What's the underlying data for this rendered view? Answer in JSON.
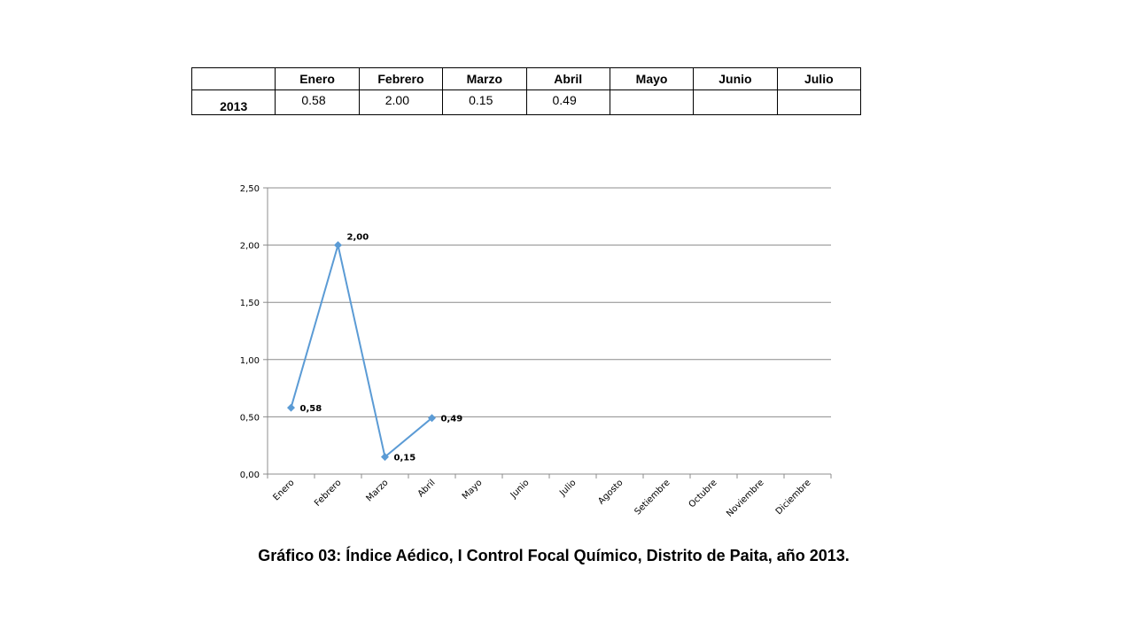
{
  "table": {
    "corner": "",
    "headers": [
      "Enero",
      "Febrero",
      "Marzo",
      "Abril",
      "Mayo",
      "Junio",
      "Julio"
    ],
    "row_label": "2013",
    "values": [
      "0.58",
      "2.00",
      "0.15",
      "0.49",
      "",
      "",
      ""
    ]
  },
  "chart_data": {
    "type": "line",
    "categories": [
      "Enero",
      "Febrero",
      "Marzo",
      "Abril",
      "Mayo",
      "Junio",
      "Julio",
      "Agosto",
      "Setiembre",
      "Octubre",
      "Noviembre",
      "Diciembre"
    ],
    "series": [
      {
        "values": [
          0.58,
          2.0,
          0.15,
          0.49,
          null,
          null,
          null,
          null,
          null,
          null,
          null,
          null
        ]
      }
    ],
    "data_labels": [
      "0,58",
      "2,00",
      "0,15",
      "0,49"
    ],
    "ylim": [
      0,
      2.5
    ],
    "yticks": [
      0,
      0.5,
      1.0,
      1.5,
      2.0,
      2.5
    ],
    "ytick_labels": [
      "0,00",
      "0,50",
      "1,00",
      "1,50",
      "2,00",
      "2,50"
    ],
    "grid": true,
    "legend": "none",
    "color": "#5b9bd5"
  },
  "caption": "Gráfico 03: Índice Aédico, I Control Focal Químico, Distrito de Paita, año 2013."
}
